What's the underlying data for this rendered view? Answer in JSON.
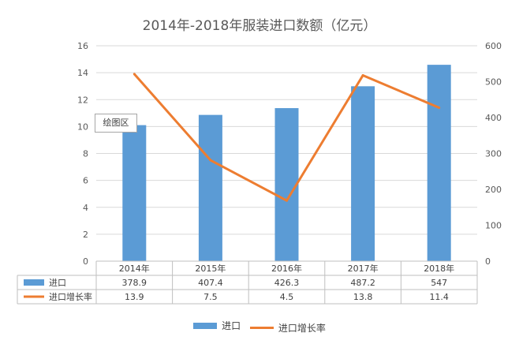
{
  "chart_data": {
    "type": "bar",
    "title": "2014年-2018年服装进口数额（亿元）",
    "categories": [
      "2014年",
      "2015年",
      "2016年",
      "2017年",
      "2018年"
    ],
    "series": [
      {
        "name": "进口",
        "type": "bar",
        "axis": "right",
        "values": [
          378.9,
          407.4,
          426.3,
          487.2,
          547
        ],
        "color": "#5b9bd5"
      },
      {
        "name": "进口增长率",
        "type": "line",
        "axis": "left",
        "values": [
          13.9,
          7.5,
          4.5,
          13.8,
          11.4
        ],
        "color": "#ed7d31"
      }
    ],
    "left_axis": {
      "ylim": [
        0,
        16
      ],
      "ticks": [
        "0",
        "2",
        "4",
        "6",
        "8",
        "10",
        "12",
        "14",
        "16"
      ]
    },
    "right_axis": {
      "ylim": [
        0,
        600
      ],
      "ticks": [
        "0",
        "100",
        "200",
        "300",
        "400",
        "500",
        "600"
      ]
    },
    "grid": true,
    "data_table": true,
    "legend_position": "bottom"
  },
  "tooltip": {
    "label": "绘图区"
  }
}
